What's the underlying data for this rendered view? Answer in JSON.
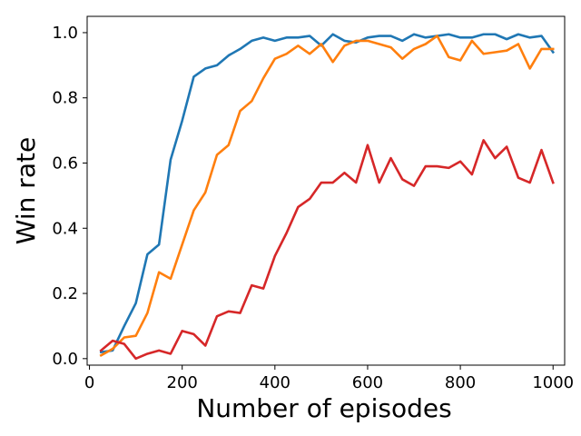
{
  "chart_data": {
    "type": "line",
    "title": "",
    "xlabel": "Number of episodes",
    "ylabel": "Win rate",
    "xlim": [
      -5,
      1025
    ],
    "ylim": [
      -0.02,
      1.05
    ],
    "x_ticks": [
      0,
      200,
      400,
      600,
      800,
      1000
    ],
    "y_ticks": [
      0.0,
      0.2,
      0.4,
      0.6,
      0.8,
      1.0
    ],
    "x_tick_labels": [
      "0",
      "200",
      "400",
      "600",
      "800",
      "1000"
    ],
    "y_tick_labels": [
      "0.0",
      "0.2",
      "0.4",
      "0.6",
      "0.8",
      "1.0"
    ],
    "grid": false,
    "legend": "none",
    "x": [
      25,
      50,
      75,
      100,
      125,
      150,
      175,
      200,
      225,
      250,
      275,
      300,
      325,
      350,
      375,
      400,
      425,
      450,
      475,
      500,
      525,
      550,
      575,
      600,
      625,
      650,
      675,
      700,
      725,
      750,
      775,
      800,
      825,
      850,
      875,
      900,
      925,
      950,
      975,
      1000
    ],
    "series": [
      {
        "color": "#1f77b4",
        "values": [
          0.02,
          0.025,
          0.1,
          0.17,
          0.32,
          0.35,
          0.61,
          0.73,
          0.865,
          0.89,
          0.9,
          0.93,
          0.95,
          0.975,
          0.985,
          0.975,
          0.985,
          0.985,
          0.99,
          0.96,
          0.995,
          0.975,
          0.97,
          0.985,
          0.99,
          0.99,
          0.975,
          0.995,
          0.985,
          0.99,
          0.995,
          0.985,
          0.985,
          0.995,
          0.995,
          0.98,
          0.995,
          0.985,
          0.99,
          0.94
        ]
      },
      {
        "color": "#ff7f0e",
        "values": [
          0.01,
          0.03,
          0.065,
          0.07,
          0.14,
          0.265,
          0.245,
          0.35,
          0.455,
          0.51,
          0.625,
          0.655,
          0.76,
          0.79,
          0.86,
          0.92,
          0.935,
          0.96,
          0.935,
          0.965,
          0.91,
          0.96,
          0.975,
          0.975,
          0.965,
          0.955,
          0.92,
          0.95,
          0.965,
          0.99,
          0.925,
          0.915,
          0.975,
          0.935,
          0.94,
          0.945,
          0.965,
          0.89,
          0.95,
          0.95
        ]
      },
      {
        "color": "#d62728",
        "values": [
          0.025,
          0.055,
          0.045,
          0.0,
          0.015,
          0.025,
          0.015,
          0.085,
          0.075,
          0.04,
          0.13,
          0.145,
          0.14,
          0.225,
          0.215,
          0.315,
          0.385,
          0.465,
          0.49,
          0.54,
          0.54,
          0.57,
          0.54,
          0.655,
          0.54,
          0.615,
          0.55,
          0.53,
          0.59,
          0.59,
          0.585,
          0.605,
          0.565,
          0.67,
          0.615,
          0.65,
          0.555,
          0.54,
          0.64,
          0.54
        ]
      }
    ]
  }
}
